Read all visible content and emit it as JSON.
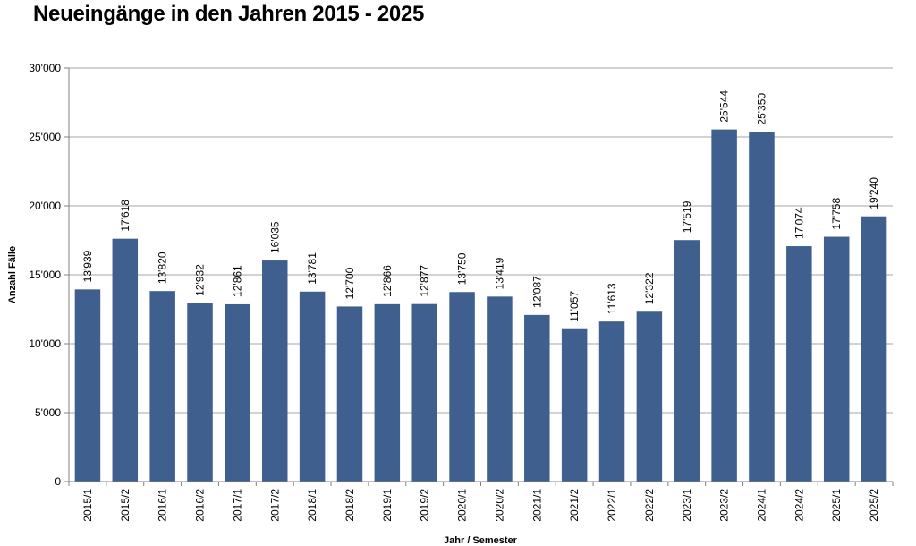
{
  "chart_data": {
    "type": "bar",
    "title": "Neueingänge in den Jahren 2015 - 2025",
    "xlabel": "Jahr / Semester",
    "ylabel": "Anzahl Fälle",
    "ylim": [
      0,
      30000
    ],
    "yticks": [
      0,
      5000,
      10000,
      15000,
      20000,
      25000,
      30000
    ],
    "ytick_labels": [
      "0",
      "5'000",
      "10'000",
      "15'000",
      "20'000",
      "25'000",
      "30'000"
    ],
    "grid": true,
    "legend": "none",
    "bar_color": "#3f5f8f",
    "categories": [
      "2015/1",
      "2015/2",
      "2016/1",
      "2016/2",
      "2017/1",
      "2017/2",
      "2018/1",
      "2018/2",
      "2019/1",
      "2019/2",
      "2020/1",
      "2020/2",
      "2021/1",
      "2021/2",
      "2022/1",
      "2022/2",
      "2023/1",
      "2023/2",
      "2024/1",
      "2024/2",
      "2025/1",
      "2025/2"
    ],
    "values": [
      13939,
      17618,
      13820,
      12932,
      12861,
      16035,
      13781,
      12700,
      12866,
      12877,
      13750,
      13419,
      12087,
      11057,
      11613,
      12322,
      17519,
      25544,
      25350,
      17074,
      17758,
      19240
    ],
    "value_labels": [
      "13'939",
      "17'618",
      "13'820",
      "12'932",
      "12'861",
      "16'035",
      "13'781",
      "12'700",
      "12'866",
      "12'877",
      "13'750",
      "13'419",
      "12'087",
      "11'057",
      "11'613",
      "12'322",
      "17'519",
      "25'544",
      "25'350",
      "17'074",
      "17'758",
      "19'240"
    ]
  }
}
